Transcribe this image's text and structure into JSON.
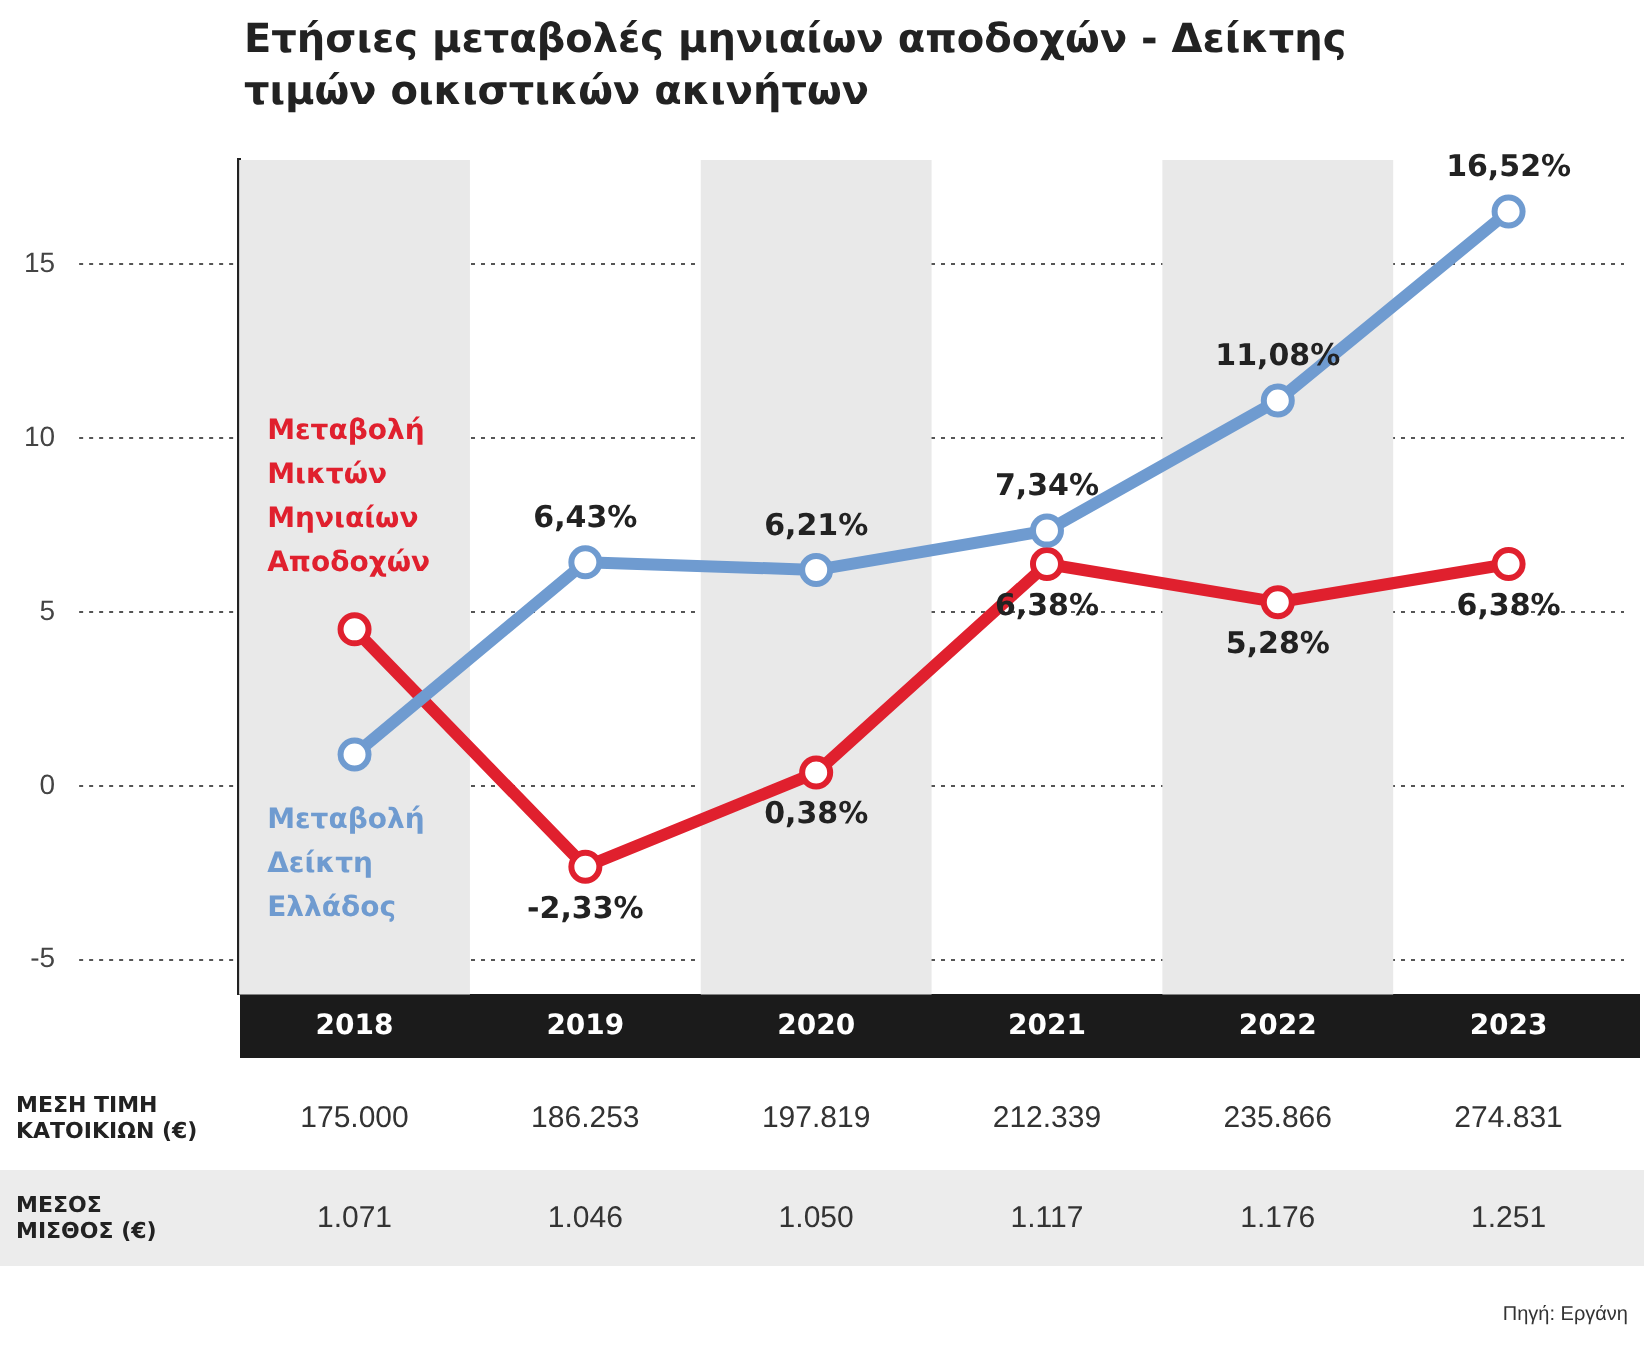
{
  "chart_data": {
    "type": "line",
    "title": "Ετήσιες μεταβολές μηνιαίων αποδοχών - Δείκτης τιμών οικιστικών ακινήτων",
    "categories": [
      "2018",
      "2019",
      "2020",
      "2021",
      "2022",
      "2023"
    ],
    "series": [
      {
        "name": "Μεταβολή Δείκτη Ελλάδος",
        "color": "#6f9bd0",
        "values": [
          0.9,
          6.43,
          6.21,
          7.34,
          11.08,
          16.52
        ],
        "value_labels": [
          null,
          "6,43%",
          "6,21%",
          "7,34%",
          "11,08%",
          "16,52%"
        ]
      },
      {
        "name": "Μεταβολή Μικτών Μηνιαίων Αποδοχών",
        "color": "#e0202e",
        "values": [
          4.5,
          -2.33,
          0.38,
          6.38,
          5.28,
          6.38
        ],
        "value_labels": [
          null,
          "-2,33%",
          "0,38%",
          "6,38%",
          "5,28%",
          "6,38%"
        ]
      }
    ],
    "bands": [
      {
        "axis": "x",
        "from": "2018",
        "to": "2018",
        "color": "#e9e9e9"
      },
      {
        "axis": "x",
        "from": "2020",
        "to": "2020",
        "color": "#e9e9e9"
      },
      {
        "axis": "x",
        "from": "2022",
        "to": "2022",
        "color": "#e9e9e9"
      }
    ],
    "ylim": [
      -6,
      18
    ],
    "yticks": [
      -5,
      0,
      5,
      10,
      15
    ],
    "grid": "y",
    "marker": "circle",
    "annotations": [
      "ΜΕΣΗ ΤΙΜΗ ΚΑΤΟΙΚΙΩΝ (€)",
      "175.000",
      "186.253",
      "197.819",
      "212.339",
      "235.866",
      "274.831",
      "ΜΕΣΟΣ ΜΙΣΘΟΣ (€)",
      "1.071",
      "1.046",
      "1.050",
      "1.117",
      "1.176",
      "1.251",
      "Πηγή: Εργάνη"
    ]
  }
}
